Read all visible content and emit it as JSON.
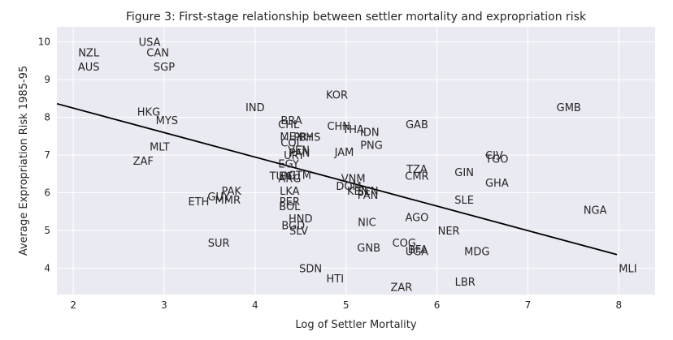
{
  "chart_data": {
    "type": "scatter",
    "title": "Figure 3: First-stage relationship between settler mortality      and expropriation risk",
    "xlabel": "Log of Settler Mortality",
    "ylabel": "Average Expropriation Risk 1985-95",
    "xlim": [
      1.82,
      8.4
    ],
    "ylim": [
      3.3,
      10.4
    ],
    "xticks": [
      2,
      3,
      4,
      5,
      6,
      7,
      8
    ],
    "yticks": [
      4,
      5,
      6,
      7,
      8,
      9,
      10
    ],
    "grid": true,
    "background": "#eaeaf2",
    "points": [
      {
        "label": "USA",
        "x": 2.84,
        "y": 10.0
      },
      {
        "label": "NZL",
        "x": 2.17,
        "y": 9.72
      },
      {
        "label": "CAN",
        "x": 2.93,
        "y": 9.72
      },
      {
        "label": "AUS",
        "x": 2.17,
        "y": 9.35
      },
      {
        "label": "SGP",
        "x": 3.0,
        "y": 9.35
      },
      {
        "label": "KOR",
        "x": 4.9,
        "y": 8.6
      },
      {
        "label": "IND",
        "x": 4.0,
        "y": 8.27
      },
      {
        "label": "GMB",
        "x": 7.45,
        "y": 8.27
      },
      {
        "label": "HKG",
        "x": 2.83,
        "y": 8.15
      },
      {
        "label": "MYS",
        "x": 3.03,
        "y": 7.93
      },
      {
        "label": "BRA",
        "x": 4.4,
        "y": 7.93
      },
      {
        "label": "CHL",
        "x": 4.37,
        "y": 7.82
      },
      {
        "label": "CHN",
        "x": 4.92,
        "y": 7.77
      },
      {
        "label": "GAB",
        "x": 5.78,
        "y": 7.82
      },
      {
        "label": "THA",
        "x": 5.08,
        "y": 7.69
      },
      {
        "label": "IDN",
        "x": 5.26,
        "y": 7.61
      },
      {
        "label": "MEX",
        "x": 4.4,
        "y": 7.5
      },
      {
        "label": "PRY",
        "x": 4.53,
        "y": 7.49
      },
      {
        "label": "BHS",
        "x": 4.6,
        "y": 7.49
      },
      {
        "label": "COL",
        "x": 4.4,
        "y": 7.33
      },
      {
        "label": "PNG",
        "x": 5.28,
        "y": 7.27
      },
      {
        "label": "MLT",
        "x": 2.95,
        "y": 7.23
      },
      {
        "label": "VEN",
        "x": 4.48,
        "y": 7.14
      },
      {
        "label": "JAM",
        "x": 4.98,
        "y": 7.09
      },
      {
        "label": "PAN",
        "x": 4.49,
        "y": 7.07
      },
      {
        "label": "URY",
        "x": 4.43,
        "y": 7.0
      },
      {
        "label": "CIV",
        "x": 6.63,
        "y": 7.0
      },
      {
        "label": "TGO",
        "x": 6.66,
        "y": 6.9
      },
      {
        "label": "ZAF",
        "x": 2.77,
        "y": 6.85
      },
      {
        "label": "EGY",
        "x": 4.37,
        "y": 6.77
      },
      {
        "label": "TZA",
        "x": 5.78,
        "y": 6.63
      },
      {
        "label": "GIN",
        "x": 6.3,
        "y": 6.55
      },
      {
        "label": "TUN",
        "x": 4.28,
        "y": 6.45
      },
      {
        "label": "ECU",
        "x": 4.38,
        "y": 6.45
      },
      {
        "label": "GTM",
        "x": 4.49,
        "y": 6.47
      },
      {
        "label": "CMR",
        "x": 5.78,
        "y": 6.45
      },
      {
        "label": "ARG",
        "x": 4.38,
        "y": 6.39
      },
      {
        "label": "VNM",
        "x": 5.08,
        "y": 6.39
      },
      {
        "label": "GHA",
        "x": 6.66,
        "y": 6.27
      },
      {
        "label": "DOM",
        "x": 5.03,
        "y": 6.18
      },
      {
        "label": "KEN",
        "x": 5.13,
        "y": 6.05
      },
      {
        "label": "SEN",
        "x": 5.24,
        "y": 6.05
      },
      {
        "label": "LKA",
        "x": 4.38,
        "y": 6.05
      },
      {
        "label": "PAK",
        "x": 3.74,
        "y": 6.05
      },
      {
        "label": "PAN",
        "x": 5.24,
        "y": 5.95
      },
      {
        "label": "GUY",
        "x": 3.6,
        "y": 5.9
      },
      {
        "label": "MMR",
        "x": 3.7,
        "y": 5.82
      },
      {
        "label": "PER",
        "x": 4.38,
        "y": 5.77
      },
      {
        "label": "ETH",
        "x": 3.38,
        "y": 5.77
      },
      {
        "label": "SLE",
        "x": 6.3,
        "y": 5.82
      },
      {
        "label": "BOL",
        "x": 4.38,
        "y": 5.64
      },
      {
        "label": "NGA",
        "x": 7.74,
        "y": 5.55
      },
      {
        "label": "AGO",
        "x": 5.78,
        "y": 5.36
      },
      {
        "label": "HND",
        "x": 4.5,
        "y": 5.32
      },
      {
        "label": "NIC",
        "x": 5.23,
        "y": 5.23
      },
      {
        "label": "BGD",
        "x": 4.42,
        "y": 5.14
      },
      {
        "label": "SLV",
        "x": 4.48,
        "y": 5.0
      },
      {
        "label": "NER",
        "x": 6.13,
        "y": 5.0
      },
      {
        "label": "SUR",
        "x": 3.6,
        "y": 4.68
      },
      {
        "label": "COG",
        "x": 5.64,
        "y": 4.68
      },
      {
        "label": "GNB",
        "x": 5.25,
        "y": 4.55
      },
      {
        "label": "BFA",
        "x": 5.79,
        "y": 4.5
      },
      {
        "label": "UGA",
        "x": 5.78,
        "y": 4.45
      },
      {
        "label": "MDG",
        "x": 6.44,
        "y": 4.45
      },
      {
        "label": "SDN",
        "x": 4.61,
        "y": 4.0
      },
      {
        "label": "MLI",
        "x": 8.1,
        "y": 4.0
      },
      {
        "label": "HTI",
        "x": 4.88,
        "y": 3.73
      },
      {
        "label": "LBR",
        "x": 6.31,
        "y": 3.64
      },
      {
        "label": "ZAR",
        "x": 5.61,
        "y": 3.5
      }
    ],
    "fit_line": {
      "x": [
        1.82,
        7.98
      ],
      "y": [
        8.36,
        4.36
      ]
    }
  }
}
